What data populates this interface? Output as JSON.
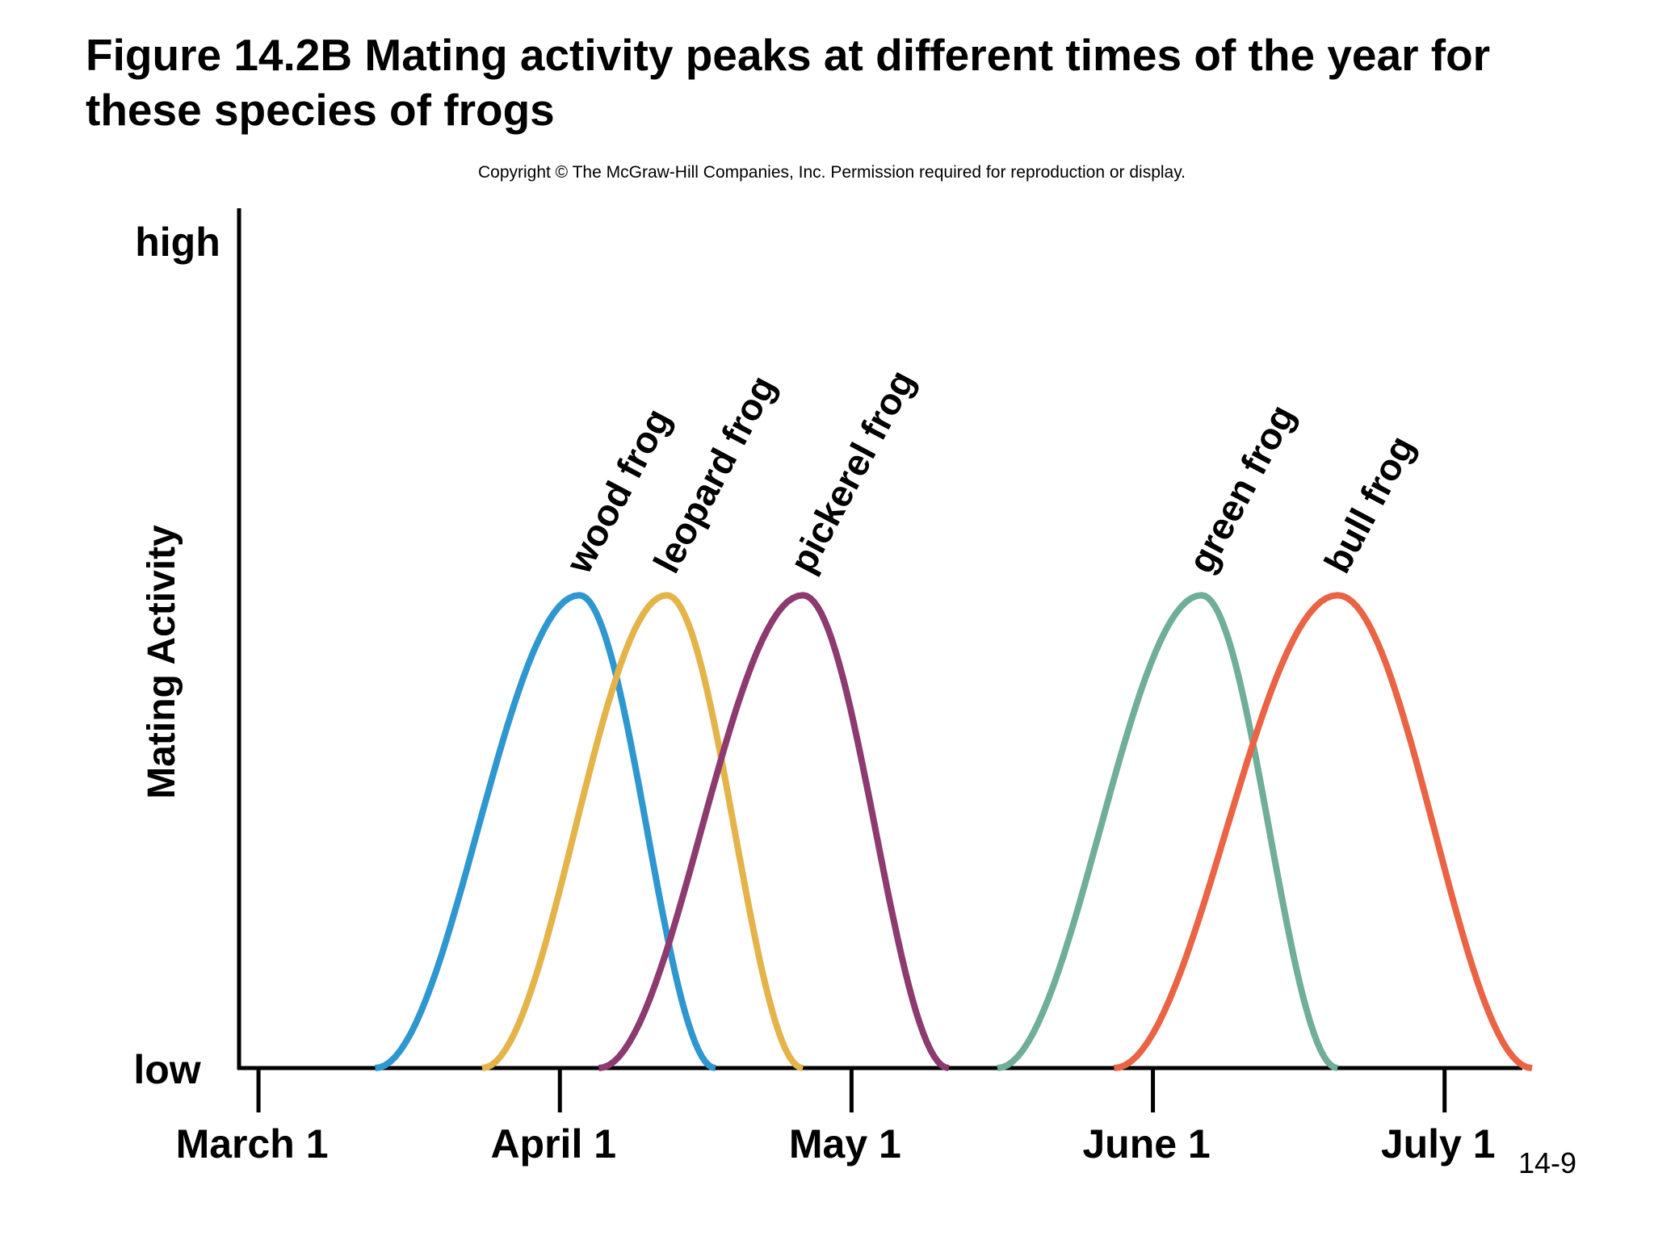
{
  "header": {
    "title": "Figure 14.2B Mating activity peaks at different times of the year for these species of frogs",
    "copyright": "Copyright © The McGraw-Hill Companies, Inc. Permission required for reproduction or display."
  },
  "footer": {
    "slide_number": "14-9"
  },
  "chart_data": {
    "type": "line",
    "title": "Figure 14.2B Mating activity peaks at different times of the year for these species of frogs",
    "xlabel": "",
    "ylabel": "Mating Activity",
    "y_tick_labels": [
      "low",
      "high"
    ],
    "ylim": [
      0,
      1
    ],
    "x_unit": "days since March 1",
    "xlim": [
      -2,
      130
    ],
    "x_ticks": [
      {
        "label": "March 1",
        "value": 0
      },
      {
        "label": "April 1",
        "value": 31
      },
      {
        "label": "May 1",
        "value": 61
      },
      {
        "label": "June 1",
        "value": 92
      },
      {
        "label": "July 1",
        "value": 122
      }
    ],
    "grid": false,
    "series": [
      {
        "name": "wood frog",
        "color": "#2e97d0",
        "start": 12,
        "peak": 33,
        "end": 47,
        "peak_value": 0.55
      },
      {
        "name": "leopard frog",
        "color": "#e4b44a",
        "start": 23,
        "peak": 42,
        "end": 56,
        "peak_value": 0.55
      },
      {
        "name": "pickerel frog",
        "color": "#8c3a6f",
        "start": 35,
        "peak": 56,
        "end": 71,
        "peak_value": 0.55
      },
      {
        "name": "green frog",
        "color": "#6fae98",
        "start": 76,
        "peak": 97,
        "end": 111,
        "peak_value": 0.55
      },
      {
        "name": "bull frog",
        "color": "#ea6345",
        "start": 88,
        "peak": 111,
        "end": 131,
        "peak_value": 0.55
      }
    ]
  }
}
